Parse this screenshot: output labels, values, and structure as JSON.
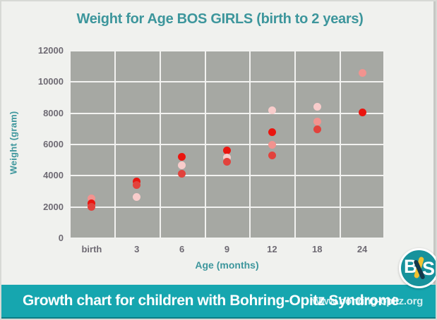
{
  "chart_data": {
    "type": "scatter",
    "title": "Weight for Age BOS GIRLS (birth to 2 years)",
    "xlabel": "Age (months)",
    "ylabel": "Weight (gram)",
    "x_tick_labels": [
      "birth",
      "3",
      "6",
      "9",
      "12",
      "18",
      "24"
    ],
    "y_ticks": [
      0,
      2000,
      4000,
      6000,
      8000,
      10000,
      12000
    ],
    "ylim": [
      0,
      12000
    ],
    "grid": true,
    "legend": "none",
    "point_colors": {
      "red": "#ea150f",
      "dark_red": "#e2423c",
      "salmon": "#f2938f",
      "pink": "#f8cccb"
    },
    "points": [
      {
        "age": "birth",
        "weight": 2550,
        "color": "salmon"
      },
      {
        "age": "birth",
        "weight": 2250,
        "color": "red"
      },
      {
        "age": "birth",
        "weight": 2000,
        "color": "dark_red"
      },
      {
        "age": "3",
        "weight": 3650,
        "color": "red"
      },
      {
        "age": "3",
        "weight": 3400,
        "color": "dark_red"
      },
      {
        "age": "3",
        "weight": 2650,
        "color": "pink"
      },
      {
        "age": "6",
        "weight": 5200,
        "color": "red"
      },
      {
        "age": "6",
        "weight": 4650,
        "color": "pink"
      },
      {
        "age": "6",
        "weight": 4150,
        "color": "dark_red"
      },
      {
        "age": "9",
        "weight": 5600,
        "color": "red"
      },
      {
        "age": "9",
        "weight": 5150,
        "color": "pink"
      },
      {
        "age": "9",
        "weight": 4900,
        "color": "dark_red"
      },
      {
        "age": "12",
        "weight": 8200,
        "color": "pink"
      },
      {
        "age": "12",
        "weight": 6800,
        "color": "red"
      },
      {
        "age": "12",
        "weight": 6000,
        "color": "salmon"
      },
      {
        "age": "12",
        "weight": 5300,
        "color": "dark_red"
      },
      {
        "age": "18",
        "weight": 8400,
        "color": "pink"
      },
      {
        "age": "18",
        "weight": 7450,
        "color": "salmon"
      },
      {
        "age": "18",
        "weight": 6950,
        "color": "dark_red"
      },
      {
        "age": "24",
        "weight": 10600,
        "color": "salmon"
      },
      {
        "age": "24",
        "weight": 8050,
        "color": "red"
      }
    ]
  },
  "banner": {
    "title": "Growth chart for children with Bohring-Opitz Syndrome",
    "website": "www.bohring-opitz.org"
  },
  "logo": {
    "letter_b": "B",
    "letter_s": "S"
  },
  "colors": {
    "title_text": "#3d969c",
    "axis_title_text": "#3d969c",
    "tick_text": "#6e6a73",
    "plot_bg": "#a6a8a3",
    "gridline": "#f2f2f0",
    "banner_bg": "#16a6af",
    "banner_edge_dark": "#0c7d86",
    "banner_edge_light": "#63c6cb",
    "logo_circle": "#17929c",
    "ribbon_yellow": "#f2c230",
    "ribbon_dark": "#14394a"
  }
}
